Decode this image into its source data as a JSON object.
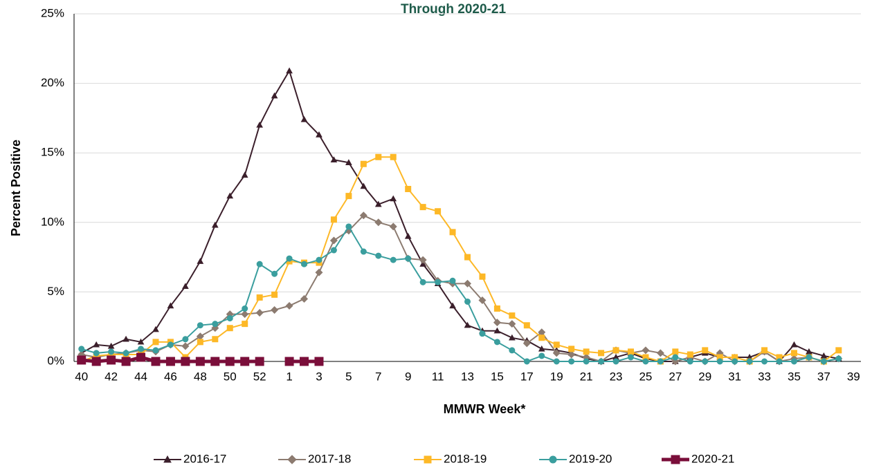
{
  "chart_data": {
    "type": "line",
    "title": "Through 2020-21",
    "x_label": "MMWR Week*",
    "y_label": "Percent Positive",
    "categories": [
      "40",
      null,
      "42",
      null,
      "44",
      null,
      "46",
      null,
      "48",
      null,
      "50",
      null,
      "52",
      null,
      "1",
      null,
      "3",
      null,
      "5",
      null,
      "7",
      null,
      "9",
      null,
      "11",
      null,
      "13",
      null,
      "15",
      null,
      "17",
      null,
      "19",
      null,
      "21",
      null,
      "23",
      null,
      "25",
      null,
      "27",
      null,
      "29",
      null,
      "31",
      null,
      "33",
      null,
      "35",
      null,
      "37",
      null,
      "39"
    ],
    "ylim": [
      0,
      25
    ],
    "yticks": [
      {
        "value": 0,
        "label": "0%"
      },
      {
        "value": 5,
        "label": "5%"
      },
      {
        "value": 10,
        "label": "10%"
      },
      {
        "value": 15,
        "label": "15%"
      },
      {
        "value": 20,
        "label": "20%"
      },
      {
        "value": 25,
        "label": "25%"
      }
    ],
    "grid": true,
    "legend": "bottom",
    "series": [
      {
        "name": "2016-17",
        "color": "#3b1f2b",
        "marker": "triangle",
        "line_width": 2,
        "values": [
          0.6,
          1.2,
          1.1,
          1.6,
          1.4,
          2.3,
          4.0,
          5.4,
          7.2,
          9.8,
          11.9,
          13.4,
          17.0,
          19.1,
          20.9,
          17.4,
          16.3,
          14.5,
          14.3,
          12.6,
          11.3,
          11.7,
          9.0,
          7.0,
          5.6,
          4.0,
          2.6,
          2.2,
          2.2,
          1.7,
          1.5,
          0.9,
          0.8,
          0.6,
          0.2,
          0.0,
          0.3,
          0.6,
          0.2,
          0.0,
          0.0,
          0.3,
          0.6,
          0.3,
          0.3,
          0.3,
          0.7,
          0.0,
          1.2,
          0.7,
          0.4,
          0.2,
          null
        ]
      },
      {
        "name": "2017-18",
        "color": "#8c7b70",
        "marker": "diamond",
        "line_width": 2,
        "values": [
          0.5,
          0.3,
          0.5,
          0.6,
          0.8,
          0.7,
          1.2,
          1.1,
          1.8,
          2.4,
          3.4,
          3.4,
          3.5,
          3.7,
          4.0,
          4.5,
          6.4,
          8.7,
          9.4,
          10.5,
          10.0,
          9.7,
          7.4,
          7.3,
          5.8,
          5.6,
          5.6,
          4.4,
          2.8,
          2.7,
          1.3,
          2.1,
          0.6,
          0.5,
          0.3,
          0.0,
          0.8,
          0.6,
          0.8,
          0.6,
          0.0,
          0.3,
          0.0,
          0.6,
          0.0,
          0.0,
          0.7,
          0.0,
          0.2,
          0.3,
          0.0,
          0.2,
          null
        ]
      },
      {
        "name": "2018-19",
        "color": "#fdb827",
        "marker": "square",
        "line_width": 2,
        "values": [
          0.0,
          0.4,
          0.5,
          0.5,
          0.5,
          1.4,
          1.4,
          0.3,
          1.4,
          1.6,
          2.4,
          2.7,
          4.6,
          4.8,
          7.2,
          7.1,
          7.1,
          10.2,
          11.9,
          14.2,
          14.7,
          14.7,
          12.4,
          11.1,
          10.8,
          9.3,
          7.5,
          6.1,
          3.8,
          3.3,
          2.6,
          1.7,
          1.2,
          0.9,
          0.7,
          0.6,
          0.8,
          0.7,
          0.3,
          0.0,
          0.7,
          0.5,
          0.8,
          0.3,
          0.3,
          0.0,
          0.8,
          0.3,
          0.6,
          0.3,
          0.0,
          0.8,
          null
        ]
      },
      {
        "name": "2019-20",
        "color": "#3a9e9e",
        "marker": "circle",
        "line_width": 2,
        "values": [
          0.9,
          0.6,
          0.7,
          0.6,
          0.9,
          0.8,
          1.2,
          1.6,
          2.6,
          2.7,
          3.1,
          3.8,
          7.0,
          6.3,
          7.4,
          7.0,
          7.3,
          8.0,
          9.7,
          7.9,
          7.6,
          7.3,
          7.4,
          5.7,
          5.7,
          5.8,
          4.3,
          2.0,
          1.4,
          0.8,
          0.0,
          0.4,
          0.0,
          0.0,
          0.0,
          0.0,
          0.0,
          0.3,
          0.0,
          0.0,
          0.3,
          0.0,
          0.0,
          0.0,
          0.0,
          0.0,
          0.0,
          0.0,
          0.0,
          0.3,
          0.0,
          0.2,
          null
        ]
      },
      {
        "name": "2020-21",
        "color": "#7a0e3a",
        "marker": "square",
        "line_width": 5,
        "values": [
          0.1,
          0.0,
          0.1,
          0.0,
          0.3,
          0.0,
          0.0,
          0.0,
          0.0,
          0.0,
          0.0,
          0.0,
          0.0,
          null,
          0.0,
          0.0,
          0.0,
          null,
          null,
          null,
          null,
          null,
          null,
          null,
          null,
          null,
          null,
          null,
          null,
          null,
          null,
          null,
          null,
          null,
          null,
          null,
          null,
          null,
          null,
          null,
          null,
          null,
          null,
          null,
          null,
          null,
          null,
          null,
          null,
          null,
          null,
          null,
          null
        ]
      }
    ]
  }
}
